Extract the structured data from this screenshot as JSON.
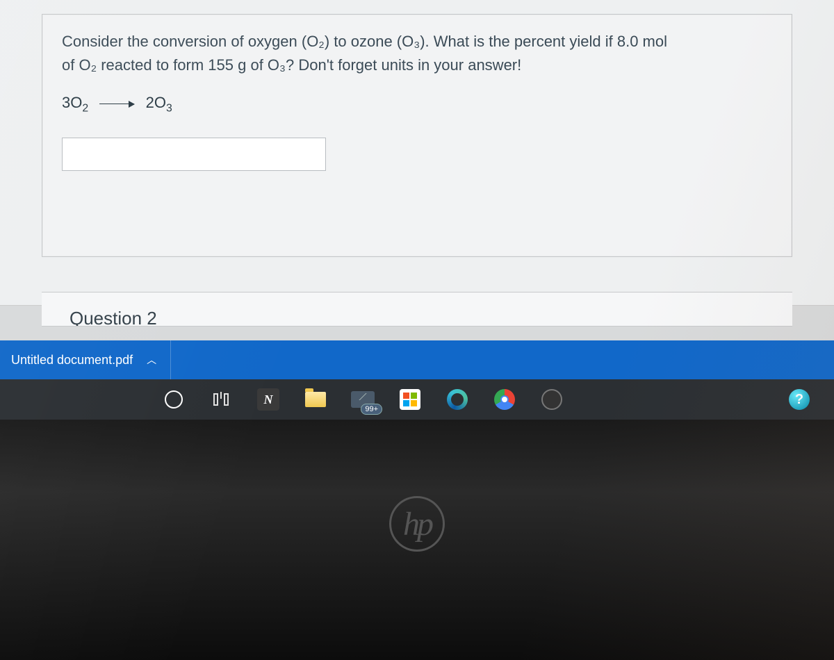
{
  "question": {
    "text_line1": "Consider the conversion of oxygen (O₂) to ozone (O₃). What is the percent yield if 8.0 mol",
    "text_line2": "of O₂ reacted to form 155 g of O₃? Don't forget units in your answer!",
    "equation_lhs_coef": "3",
    "equation_lhs_species": "O",
    "equation_lhs_sub": "2",
    "equation_rhs_coef": "2",
    "equation_rhs_species": "O",
    "equation_rhs_sub": "3",
    "answer_value": ""
  },
  "next_question_peek": "Question 2",
  "downloads": {
    "file_name": "Untitled document.pdf"
  },
  "taskbar": {
    "mail_badge": "99+",
    "help_glyph": "?"
  },
  "bezel": {
    "logo_text": "hp"
  },
  "colors": {
    "content_bg": "#eef0f1",
    "question_border": "#c5c7c9",
    "question_text": "#3a4a56",
    "downloads_bar": "#1168c9",
    "taskbar_bg": "#2b2f33"
  }
}
